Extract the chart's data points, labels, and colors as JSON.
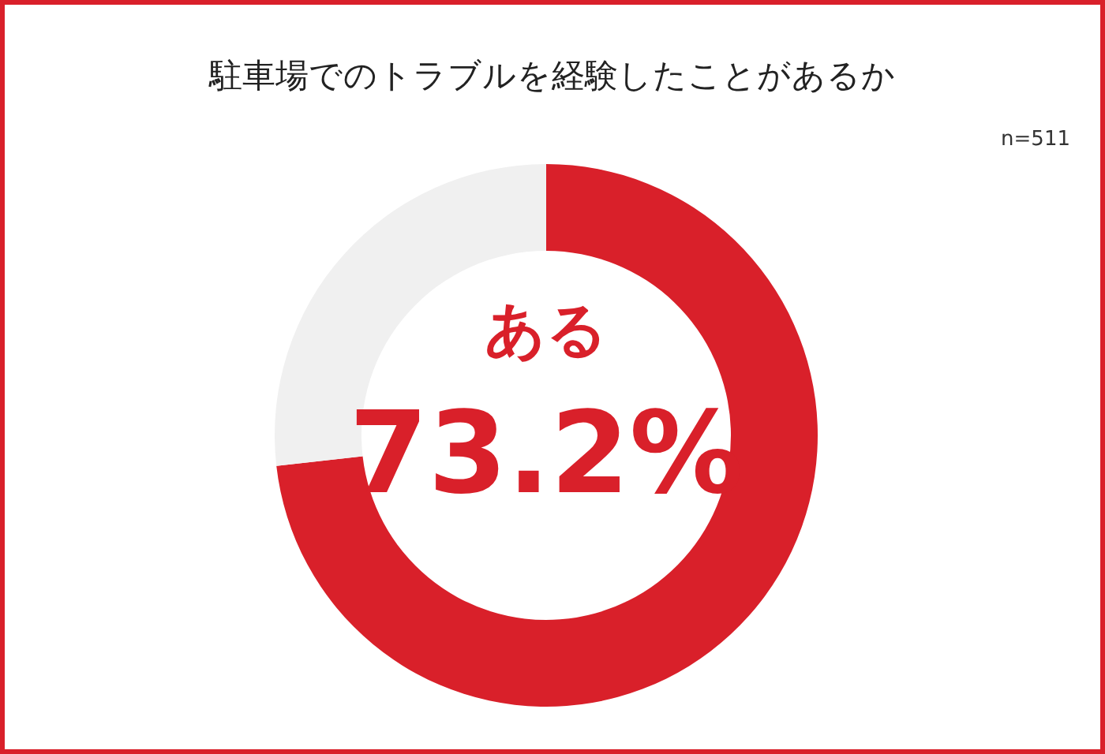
{
  "chart_data": {
    "type": "donut",
    "title": "駐車場でのトラブルを経験したことがあるか",
    "categories": [
      "ある",
      null
    ],
    "values": [
      73.2,
      26.8
    ],
    "colors": [
      "#d9202a",
      "#f0f0f0"
    ],
    "value_labels": [
      "73.2%",
      null
    ],
    "annotations": [
      "n=511"
    ]
  }
}
